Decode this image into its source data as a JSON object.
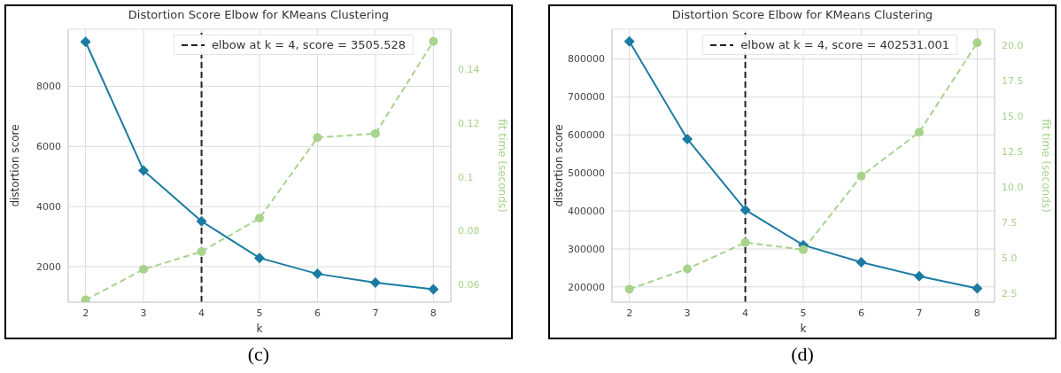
{
  "chart_data": [
    {
      "type": "line",
      "title": "Distortion Score Elbow for KMeans Clustering",
      "xlabel": "k",
      "ylabel": "distortion score",
      "y2label": "fit time (seconds)",
      "x": [
        2,
        3,
        4,
        5,
        6,
        7,
        8
      ],
      "xlim": [
        1.7,
        8.3
      ],
      "xticks": [
        2,
        3,
        4,
        5,
        6,
        7,
        8
      ],
      "ylim": [
        820,
        9900
      ],
      "yticks": [
        2000,
        4000,
        6000,
        8000
      ],
      "y2lim": [
        0.0535,
        0.155
      ],
      "y2ticks": [
        0.06,
        0.08,
        0.1,
        0.12,
        0.14
      ],
      "grid": true,
      "legend": "top right",
      "series": [
        {
          "color": "#1b7ba3",
          "values": [
            9480,
            5200,
            3510,
            2290,
            1760,
            1470,
            1250
          ],
          "marker": "diamond",
          "line_style": "solid"
        },
        {
          "color": "#a8d38c",
          "values": [
            0.0543,
            0.0657,
            0.0723,
            0.0847,
            0.1147,
            0.1162,
            0.1505
          ],
          "axis": "y2",
          "marker": "circle",
          "line_style": "dashed"
        }
      ],
      "ref_lines": [
        {
          "axis": "x",
          "value": 4,
          "label": "elbow at k = 4, score = 3505.528",
          "color": "#222222",
          "line_style": "dashed"
        }
      ],
      "annotations": [
        "(c)"
      ]
    },
    {
      "type": "line",
      "title": "Distortion Score Elbow for KMeans Clustering",
      "xlabel": "k",
      "ylabel": "distortion score",
      "y2label": "fit time (seconds)",
      "x": [
        2,
        3,
        4,
        5,
        6,
        7,
        8
      ],
      "xlim": [
        1.7,
        8.3
      ],
      "xticks": [
        2,
        3,
        4,
        5,
        6,
        7,
        8
      ],
      "ylim": [
        160000,
        878000
      ],
      "yticks": [
        200000,
        300000,
        400000,
        500000,
        600000,
        700000,
        800000
      ],
      "y2lim": [
        1.9,
        21.1
      ],
      "y2ticks": [
        2.5,
        {
          "value": 5,
          "label": "5.0"
        },
        7.5,
        {
          "value": 10,
          "label": "10.0"
        },
        12.5,
        {
          "value": 15,
          "label": "15.0"
        },
        17.5,
        {
          "value": 20,
          "label": "20.0"
        }
      ],
      "grid": true,
      "legend": "top right",
      "series": [
        {
          "color": "#1b7ba3",
          "values": [
            846000,
            589000,
            402500,
            310000,
            265000,
            228000,
            196000
          ],
          "marker": "diamond",
          "line_style": "solid"
        },
        {
          "color": "#a8d38c",
          "values": [
            2.81,
            4.24,
            6.09,
            5.59,
            10.77,
            13.85,
            20.15
          ],
          "axis": "y2",
          "marker": "circle",
          "line_style": "dashed"
        }
      ],
      "ref_lines": [
        {
          "axis": "x",
          "value": 4,
          "label": "elbow at k = 4, score = 402531.001",
          "color": "#222222",
          "line_style": "dashed"
        }
      ],
      "annotations": [
        "(d)"
      ]
    }
  ]
}
